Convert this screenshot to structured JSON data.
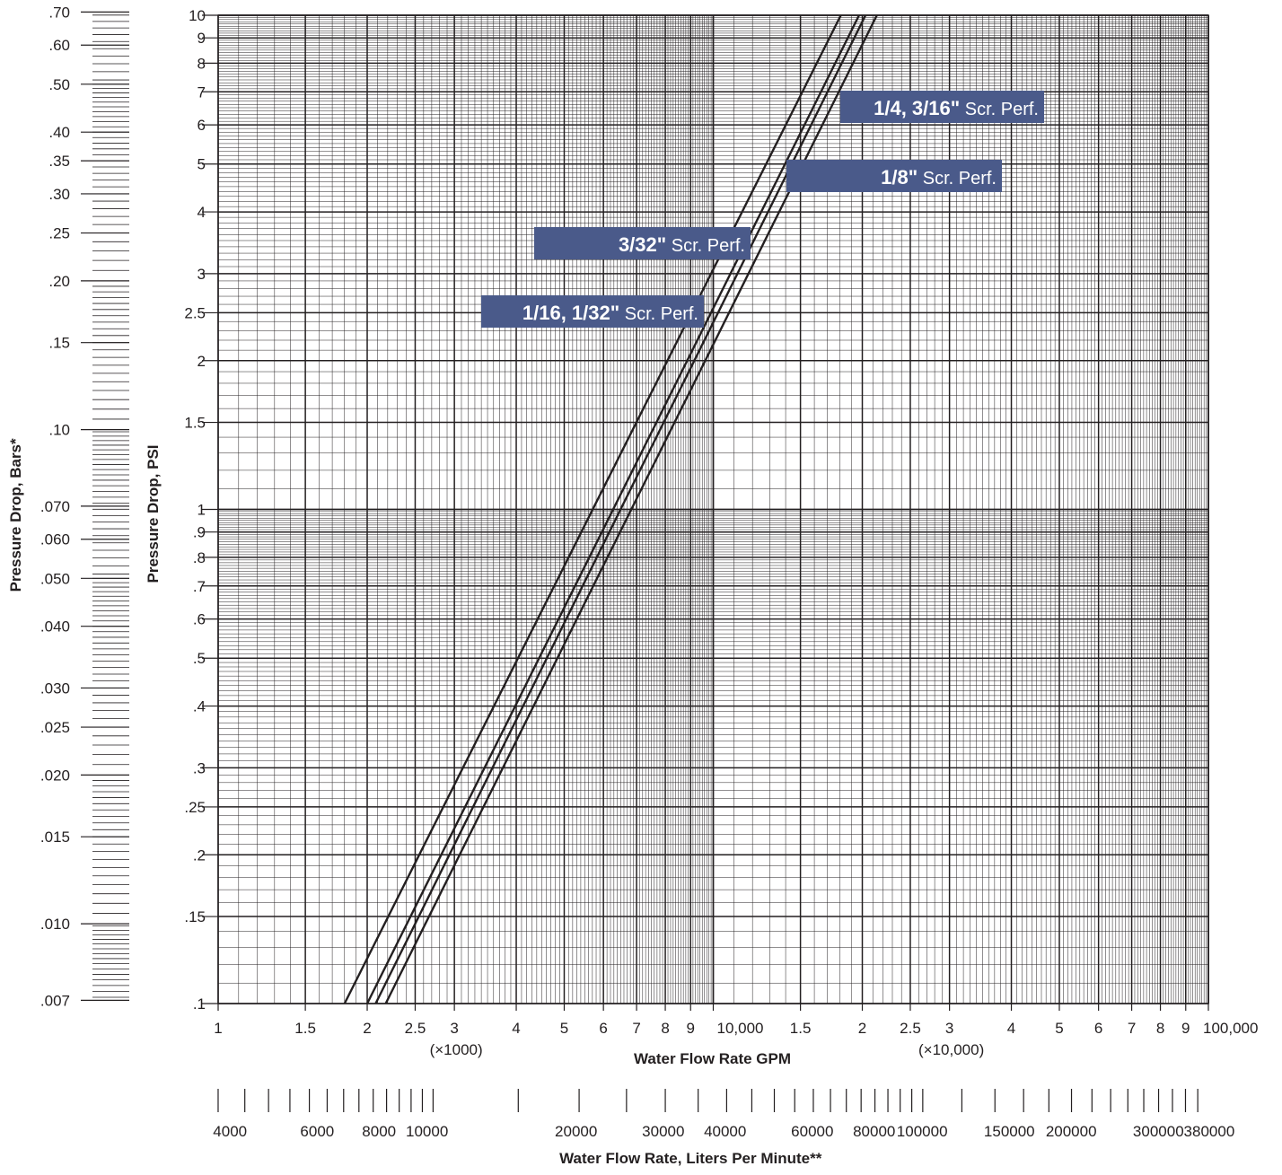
{
  "chart_data": {
    "type": "line",
    "x_scale": "log",
    "y_scale": "log",
    "xlim": [
      1000,
      100000
    ],
    "ylim": [
      0.1,
      10
    ],
    "xlabel": "Water Flow Rate GPM",
    "ylabel": "Pressure Drop, PSI",
    "grid": true,
    "x_ticks": [
      {
        "v": 1000,
        "t": "1"
      },
      {
        "v": 1500,
        "t": "1.5"
      },
      {
        "v": 2000,
        "t": "2"
      },
      {
        "v": 2500,
        "t": "2.5"
      },
      {
        "v": 3000,
        "t": "3"
      },
      {
        "v": 4000,
        "t": "4"
      },
      {
        "v": 5000,
        "t": "5"
      },
      {
        "v": 6000,
        "t": "6"
      },
      {
        "v": 7000,
        "t": "7"
      },
      {
        "v": 8000,
        "t": "8"
      },
      {
        "v": 9000,
        "t": "9"
      },
      {
        "v": 10000,
        "t": "10,000"
      },
      {
        "v": 15000,
        "t": "1.5"
      },
      {
        "v": 20000,
        "t": "2"
      },
      {
        "v": 25000,
        "t": "2.5"
      },
      {
        "v": 30000,
        "t": "3"
      },
      {
        "v": 40000,
        "t": "4"
      },
      {
        "v": 50000,
        "t": "5"
      },
      {
        "v": 60000,
        "t": "6"
      },
      {
        "v": 70000,
        "t": "7"
      },
      {
        "v": 80000,
        "t": "8"
      },
      {
        "v": 90000,
        "t": "9"
      },
      {
        "v": 100000,
        "t": "100,000"
      }
    ],
    "x_multipliers": [
      {
        "v": 3000,
        "t": "(×1000)"
      },
      {
        "v": 30000,
        "t": "(×10,000)"
      }
    ],
    "y_ticks": [
      {
        "v": 10,
        "t": "10"
      },
      {
        "v": 9,
        "t": "9"
      },
      {
        "v": 8,
        "t": "8"
      },
      {
        "v": 7,
        "t": "7"
      },
      {
        "v": 6,
        "t": "6"
      },
      {
        "v": 5,
        "t": "5"
      },
      {
        "v": 4,
        "t": "4"
      },
      {
        "v": 3,
        "t": "3"
      },
      {
        "v": 2.5,
        "t": "2.5"
      },
      {
        "v": 2,
        "t": "2"
      },
      {
        "v": 1.5,
        "t": "1.5"
      },
      {
        "v": 1,
        "t": "1"
      },
      {
        "v": 0.9,
        "t": ".9"
      },
      {
        "v": 0.8,
        "t": ".8"
      },
      {
        "v": 0.7,
        "t": ".7"
      },
      {
        "v": 0.6,
        "t": ".6"
      },
      {
        "v": 0.5,
        "t": ".5"
      },
      {
        "v": 0.4,
        "t": ".4"
      },
      {
        "v": 0.3,
        "t": ".3"
      },
      {
        "v": 0.25,
        "t": ".25"
      },
      {
        "v": 0.2,
        "t": ".2"
      },
      {
        "v": 0.15,
        "t": ".15"
      },
      {
        "v": 0.1,
        "t": ".1"
      }
    ],
    "secondary_y": {
      "label": "Pressure Drop, Bars*",
      "ticks": [
        {
          "v": 0.7,
          "t": ".70"
        },
        {
          "v": 0.6,
          "t": ".60"
        },
        {
          "v": 0.5,
          "t": ".50"
        },
        {
          "v": 0.4,
          "t": ".40"
        },
        {
          "v": 0.35,
          "t": ".35"
        },
        {
          "v": 0.3,
          "t": ".30"
        },
        {
          "v": 0.25,
          "t": ".25"
        },
        {
          "v": 0.2,
          "t": ".20"
        },
        {
          "v": 0.15,
          "t": ".15"
        },
        {
          "v": 0.1,
          "t": ".10"
        },
        {
          "v": 0.07,
          "t": ".070"
        },
        {
          "v": 0.06,
          "t": ".060"
        },
        {
          "v": 0.05,
          "t": ".050"
        },
        {
          "v": 0.04,
          "t": ".040"
        },
        {
          "v": 0.03,
          "t": ".030"
        },
        {
          "v": 0.025,
          "t": ".025"
        },
        {
          "v": 0.02,
          "t": ".020"
        },
        {
          "v": 0.015,
          "t": ".015"
        },
        {
          "v": 0.01,
          "t": ".010"
        },
        {
          "v": 0.007,
          "t": ".007"
        }
      ]
    },
    "secondary_x": {
      "label": "Water Flow Rate, Liters Per Minute**",
      "ticks": [
        {
          "v": 4000,
          "t": "4000"
        },
        {
          "v": 6000,
          "t": "6000"
        },
        {
          "v": 8000,
          "t": "8000"
        },
        {
          "v": 10000,
          "t": "10000"
        },
        {
          "v": 20000,
          "t": "20000"
        },
        {
          "v": 30000,
          "t": "30000"
        },
        {
          "v": 40000,
          "t": "40000"
        },
        {
          "v": 60000,
          "t": "60000"
        },
        {
          "v": 80000,
          "t": "80000"
        },
        {
          "v": 100000,
          "t": "100000"
        },
        {
          "v": 150000,
          "t": "150000"
        },
        {
          "v": 200000,
          "t": "200000"
        },
        {
          "v": 300000,
          "t": "300000"
        },
        {
          "v": 380000,
          "t": "380000"
        }
      ]
    },
    "series": [
      {
        "name": "1/16, 1/32\" Scr. Perf.",
        "label_bold": "1/16, 1/32\"",
        "label_rest": " Scr. Perf.",
        "x": [
          1800,
          18100
        ],
        "y": [
          0.1,
          10
        ]
      },
      {
        "name": "3/32\" Scr. Perf.",
        "label_bold": "3/32\"",
        "label_rest": " Scr. Perf.",
        "x": [
          2000,
          19700
        ],
        "y": [
          0.1,
          10
        ]
      },
      {
        "name": "1/8\" Scr. Perf.",
        "label_bold": "1/8\"",
        "label_rest": " Scr. Perf.",
        "x": [
          2080,
          20300
        ],
        "y": [
          0.1,
          10
        ]
      },
      {
        "name": "1/4, 3/16\" Scr. Perf.",
        "label_bold": "1/4, 3/16\"",
        "label_rest": " Scr. Perf.",
        "x": [
          2180,
          21400
        ],
        "y": [
          0.1,
          10
        ]
      }
    ],
    "label_color": "#4a5a8a"
  }
}
